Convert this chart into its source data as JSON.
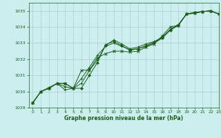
{
  "xlabel": "Graphe pression niveau de la mer (hPa)",
  "ylim": [
    1029,
    1035.5
  ],
  "xlim": [
    -0.5,
    23
  ],
  "yticks": [
    1029,
    1030,
    1031,
    1032,
    1033,
    1034,
    1035
  ],
  "xticks": [
    0,
    1,
    2,
    3,
    4,
    5,
    6,
    7,
    8,
    9,
    10,
    11,
    12,
    13,
    14,
    15,
    16,
    17,
    18,
    19,
    20,
    21,
    22,
    23
  ],
  "bg_color": "#cceeee",
  "grid_color": "#aacccc",
  "line_color": "#1a5c1a",
  "series": [
    [
      1029.3,
      1030.0,
      1030.2,
      1030.5,
      1030.5,
      1030.2,
      1030.2,
      1031.0,
      1031.8,
      1032.9,
      1033.1,
      1032.85,
      1032.55,
      1032.65,
      1032.8,
      1033.0,
      1033.3,
      1033.8,
      1034.1,
      1034.8,
      1034.9,
      1034.95,
      1035.0,
      1034.8
    ],
    [
      1029.3,
      1030.0,
      1030.25,
      1030.5,
      1030.3,
      1030.2,
      1030.5,
      1031.3,
      1031.95,
      1032.85,
      1033.2,
      1032.95,
      1032.65,
      1032.75,
      1032.95,
      1033.1,
      1033.35,
      1033.85,
      1034.15,
      1034.8,
      1034.9,
      1034.95,
      1035.0,
      1034.8
    ],
    [
      1029.3,
      1030.0,
      1030.2,
      1030.5,
      1030.5,
      1030.2,
      1031.3,
      1031.35,
      1032.1,
      1032.35,
      1032.5,
      1032.5,
      1032.45,
      1032.5,
      1032.75,
      1032.95,
      1033.45,
      1034.0,
      1034.1,
      1034.8,
      1034.85,
      1034.95,
      1035.0,
      1034.8
    ],
    [
      1029.3,
      1030.0,
      1030.2,
      1030.5,
      1030.1,
      1030.2,
      1030.8,
      1031.5,
      1032.25,
      1032.8,
      1033.0,
      1032.8,
      1032.6,
      1032.65,
      1032.85,
      1033.05,
      1033.35,
      1033.85,
      1034.1,
      1034.8,
      1034.85,
      1034.95,
      1035.0,
      1034.8
    ]
  ],
  "fig_width": 3.2,
  "fig_height": 2.0,
  "dpi": 100
}
